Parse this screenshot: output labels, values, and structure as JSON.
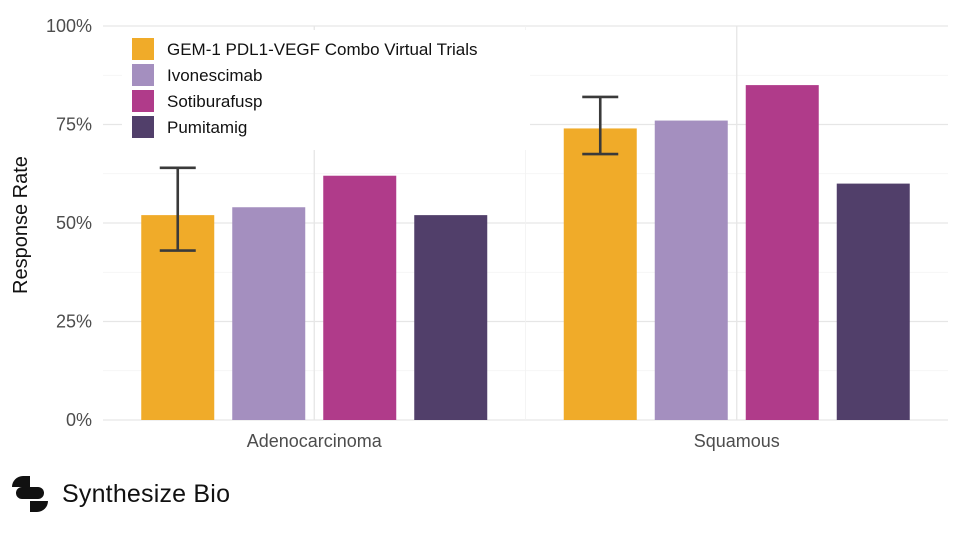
{
  "chart_data": {
    "type": "bar",
    "title": "",
    "xlabel": "",
    "ylabel": "Response Rate",
    "ylim": [
      0,
      100
    ],
    "y_ticks": [
      "0%",
      "25%",
      "50%",
      "75%",
      "100%"
    ],
    "categories": [
      "Adenocarcinoma",
      "Squamous"
    ],
    "series": [
      {
        "name": "GEM-1 PDL1-VEGF Combo Virtual Trials",
        "color": "#f0ab29",
        "values": [
          52,
          74
        ],
        "error_low": [
          43,
          67.5
        ],
        "error_high": [
          64,
          82
        ]
      },
      {
        "name": "Ivonescimab",
        "color": "#a48fbf",
        "values": [
          54,
          76
        ]
      },
      {
        "name": "Sotiburafusp",
        "color": "#b03b8a",
        "values": [
          62,
          85
        ]
      },
      {
        "name": "Pumitamig",
        "color": "#513f6a",
        "values": [
          52,
          60
        ]
      }
    ],
    "legend_position": "top-left",
    "grid": true
  },
  "brand": {
    "name": "Synthesize Bio",
    "icon": "synthesize-bio-logo-icon"
  }
}
